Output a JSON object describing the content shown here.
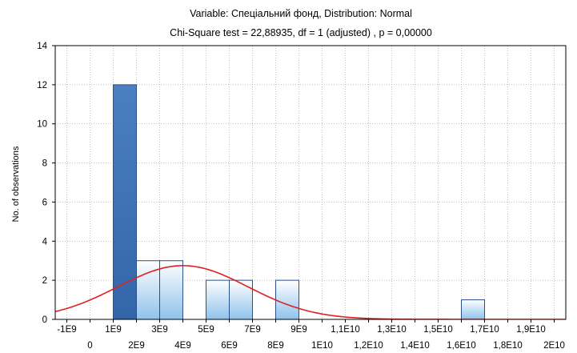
{
  "chart_data": {
    "type": "bar",
    "title": "Variable: Спеціальний фонд, Distribution: Normal",
    "subtitle": "Chi-Square test = 22,88935, df = 1 (adjusted) , p = 0,00000",
    "xlabel": "",
    "ylabel": "No. of observations",
    "xlim": [
      -1500000000,
      20500000000
    ],
    "ylim": [
      0,
      14
    ],
    "yticks": [
      0,
      2,
      4,
      6,
      8,
      10,
      12,
      14
    ],
    "xticks": [
      {
        "value": -1000000000,
        "label": "-1E9"
      },
      {
        "value": 0,
        "label": "0"
      },
      {
        "value": 1000000000,
        "label": "1E9"
      },
      {
        "value": 2000000000,
        "label": "2E9"
      },
      {
        "value": 3000000000,
        "label": "3E9"
      },
      {
        "value": 4000000000,
        "label": "4E9"
      },
      {
        "value": 5000000000,
        "label": "5E9"
      },
      {
        "value": 6000000000,
        "label": "6E9"
      },
      {
        "value": 7000000000,
        "label": "7E9"
      },
      {
        "value": 8000000000,
        "label": "8E9"
      },
      {
        "value": 9000000000,
        "label": "9E9"
      },
      {
        "value": 10000000000,
        "label": "1E10"
      },
      {
        "value": 11000000000,
        "label": "1,1E10"
      },
      {
        "value": 12000000000,
        "label": "1,2E10"
      },
      {
        "value": 13000000000,
        "label": "1,3E10"
      },
      {
        "value": 14000000000,
        "label": "1,4E10"
      },
      {
        "value": 15000000000,
        "label": "1,5E10"
      },
      {
        "value": 16000000000,
        "label": "1,6E10"
      },
      {
        "value": 17000000000,
        "label": "1,7E10"
      },
      {
        "value": 18000000000,
        "label": "1,8E10"
      },
      {
        "value": 19000000000,
        "label": "1,9E10"
      },
      {
        "value": 20000000000,
        "label": "2E10"
      }
    ],
    "bins": [
      {
        "from": 1000000000,
        "to": 2000000000,
        "count": 12
      },
      {
        "from": 2000000000,
        "to": 3000000000,
        "count": 3
      },
      {
        "from": 3000000000,
        "to": 4000000000,
        "count": 3
      },
      {
        "from": 4000000000,
        "to": 5000000000,
        "count": 0
      },
      {
        "from": 5000000000,
        "to": 6000000000,
        "count": 2
      },
      {
        "from": 6000000000,
        "to": 7000000000,
        "count": 2
      },
      {
        "from": 7000000000,
        "to": 8000000000,
        "count": 0
      },
      {
        "from": 8000000000,
        "to": 9000000000,
        "count": 2
      },
      {
        "from": 16000000000,
        "to": 17000000000,
        "count": 1
      }
    ],
    "normal_curve": {
      "mean": 4000000000,
      "peak": 2.75,
      "sd": 2800000000
    },
    "grid": true,
    "colors": {
      "bar_top": "#ffffff",
      "bar_bottom": "#8fc2ec",
      "bar_highlight_top": "#4a7fc0",
      "bar_highlight_bottom": "#3266a8",
      "bar_stroke": "#2b4f8a",
      "curve": "#e02020",
      "grid": "#9a9a9a"
    }
  }
}
